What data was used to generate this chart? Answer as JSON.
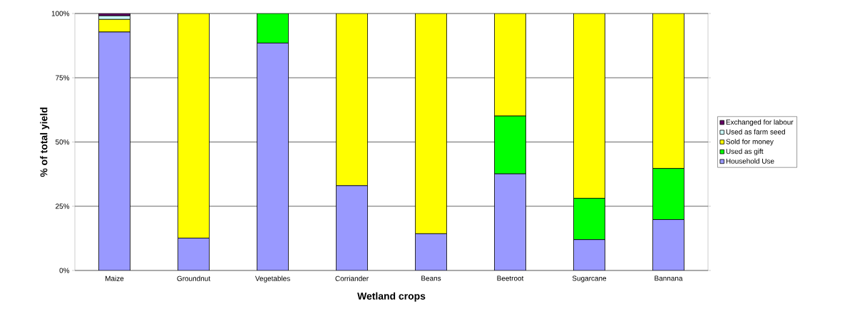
{
  "chart_data": {
    "type": "bar",
    "stacked": true,
    "xlabel": "Wetland crops",
    "ylabel": "% of total yield",
    "categories": [
      "Maize",
      "Groundnut",
      "Vegetables",
      "Corriander",
      "Beans",
      "Beetroot",
      "Sugarcane",
      "Bannana"
    ],
    "series": [
      {
        "name": "Household Use",
        "color": "#9999ff",
        "values": [
          92.8,
          12.6,
          88.5,
          33.0,
          14.3,
          37.6,
          12.0,
          19.8
        ]
      },
      {
        "name": "Used as gift",
        "color": "#00ff00",
        "values": [
          0,
          0,
          11.5,
          0,
          0,
          22.5,
          16.1,
          19.9
        ]
      },
      {
        "name": "Sold for money",
        "color": "#ffff00",
        "values": [
          4.9,
          87.4,
          0,
          67.0,
          85.7,
          39.9,
          71.9,
          60.3
        ]
      },
      {
        "name": "Used as farm seed",
        "color": "#ccffff",
        "values": [
          1.4,
          0,
          0,
          0,
          0,
          0,
          0,
          0
        ]
      },
      {
        "name": "Exchanged for labour",
        "color": "#660066",
        "values": [
          0.9,
          0,
          0,
          0,
          0,
          0,
          0,
          0
        ]
      }
    ],
    "ylim": [
      0,
      100
    ],
    "yticks": [
      {
        "value": 0,
        "label": "0%"
      },
      {
        "value": 25,
        "label": "25%"
      },
      {
        "value": 50,
        "label": "50%"
      },
      {
        "value": 75,
        "label": "75%"
      },
      {
        "value": 100,
        "label": "100%"
      }
    ],
    "grid": "y",
    "legend": "right"
  }
}
